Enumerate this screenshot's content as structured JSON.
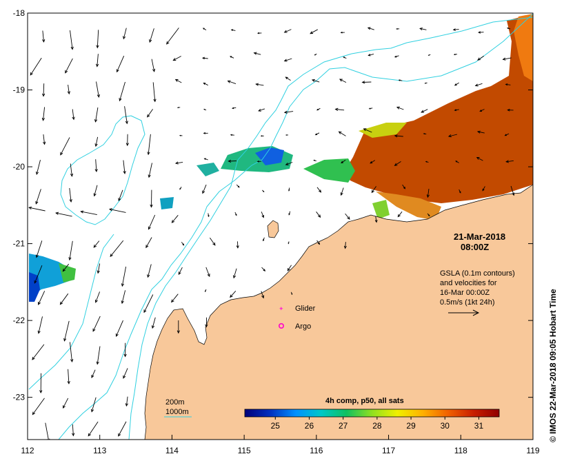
{
  "colors": {
    "land": "#f8c89a",
    "contour": "#2fd0e0",
    "frame": "#000000",
    "glider": "#ff33cc",
    "argo": "#ff00cc",
    "arrow": "#000000"
  },
  "axes": {
    "x_ticks": [
      "112",
      "113",
      "114",
      "115",
      "116",
      "117",
      "118",
      "119"
    ],
    "y_ticks": [
      "-18",
      "-19",
      "-20",
      "-21",
      "-22",
      "-23"
    ],
    "lon_range": [
      112,
      119
    ],
    "lat_range": [
      -18,
      -23.55
    ]
  },
  "timestamp": {
    "date": "21-Mar-2018",
    "time": "08:00Z"
  },
  "gsla_note": {
    "line1": "GSLA (0.1m contours)",
    "line2": "and velocities for",
    "line3": "16-Mar 00:00Z",
    "line4": "0.5m/s (1kt 24h)"
  },
  "markers": {
    "glider_label": "Glider",
    "argo_label": "Argo"
  },
  "isobaths": {
    "shallow": "200m",
    "deep": "1000m"
  },
  "colorbar": {
    "title": "4h comp, p50, all sats",
    "ticks": [
      "25",
      "26",
      "27",
      "28",
      "29",
      "30",
      "31"
    ],
    "range": [
      24.1,
      31.6
    ],
    "stops": [
      "#00007a",
      "#0030c0",
      "#0090ff",
      "#00c8c8",
      "#10c060",
      "#90e020",
      "#f0f000",
      "#ffb000",
      "#f06000",
      "#c81e00",
      "#900000"
    ]
  },
  "credit": "© IMOS 22-Mar-2018 09:05 Hobart Time"
}
